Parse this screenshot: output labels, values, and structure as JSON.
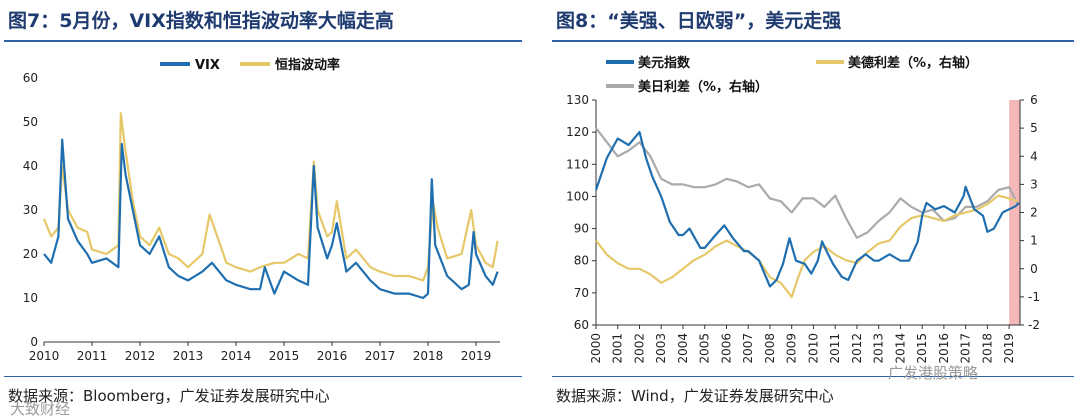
{
  "left": {
    "title": "图7：5月份，VIX指数和恒指波动率大幅走高",
    "source": "数据来源：Bloomberg，广发证券发展研究中心",
    "watermark": "大致财经"
  },
  "right": {
    "title": "图8：“美强、日欧弱”，美元走强",
    "source": "数据来源：Wind，广发证券发展研究中心",
    "watermark": "广发港股策略"
  },
  "colors": {
    "vix": "#1f6fb0",
    "hsi": "#e6c869",
    "dxy": "#1f6fb0",
    "us_de": "#e6c869",
    "us_jp": "#aaaaaa",
    "shade": "#f4b8b8"
  },
  "chart_data": [
    {
      "type": "line",
      "title": "5月份，VIX指数和恒指波动率大幅走高",
      "legend": [
        "VIX",
        "恒指波动率"
      ],
      "legend_position": "top-center",
      "x_ticks": [
        "2010",
        "2011",
        "2012",
        "2013",
        "2014",
        "2015",
        "2016",
        "2017",
        "2018",
        "2019"
      ],
      "xlim": [
        2010.0,
        2019.5
      ],
      "y_ticks": [
        "0",
        "10",
        "20",
        "30",
        "40",
        "50",
        "60"
      ],
      "ylim": [
        0,
        60
      ],
      "series": [
        {
          "name": "VIX",
          "color": "#1f6fb0",
          "x": [
            2010.0,
            2010.15,
            2010.3,
            2010.38,
            2010.5,
            2010.7,
            2010.9,
            2011.0,
            2011.3,
            2011.55,
            2011.62,
            2011.7,
            2011.85,
            2012.0,
            2012.2,
            2012.4,
            2012.6,
            2012.8,
            2013.0,
            2013.3,
            2013.5,
            2013.8,
            2014.0,
            2014.3,
            2014.5,
            2014.6,
            2014.8,
            2015.0,
            2015.3,
            2015.5,
            2015.62,
            2015.7,
            2015.9,
            2016.0,
            2016.1,
            2016.3,
            2016.5,
            2016.8,
            2017.0,
            2017.3,
            2017.6,
            2017.9,
            2018.0,
            2018.08,
            2018.15,
            2018.4,
            2018.7,
            2018.85,
            2018.95,
            2019.0,
            2019.2,
            2019.35,
            2019.45
          ],
          "y": [
            20,
            18,
            24,
            46,
            28,
            23,
            20,
            18,
            19,
            17,
            45,
            38,
            30,
            22,
            20,
            24,
            17,
            15,
            14,
            16,
            18,
            14,
            13,
            12,
            12,
            17,
            11,
            16,
            14,
            13,
            40,
            26,
            19,
            22,
            27,
            16,
            18,
            14,
            12,
            11,
            11,
            10,
            11,
            37,
            22,
            15,
            12,
            13,
            25,
            20,
            15,
            13,
            16
          ]
        },
        {
          "name": "恒指波动率",
          "color": "#e6c869",
          "x": [
            2010.0,
            2010.15,
            2010.3,
            2010.38,
            2010.5,
            2010.7,
            2010.9,
            2011.0,
            2011.3,
            2011.55,
            2011.6,
            2011.68,
            2011.85,
            2012.0,
            2012.2,
            2012.4,
            2012.6,
            2012.8,
            2013.0,
            2013.3,
            2013.45,
            2013.8,
            2014.0,
            2014.3,
            2014.5,
            2014.8,
            2015.0,
            2015.3,
            2015.5,
            2015.62,
            2015.7,
            2015.9,
            2016.0,
            2016.1,
            2016.3,
            2016.5,
            2016.8,
            2017.0,
            2017.3,
            2017.6,
            2017.9,
            2018.0,
            2018.1,
            2018.2,
            2018.4,
            2018.7,
            2018.9,
            2019.0,
            2019.2,
            2019.35,
            2019.45
          ],
          "y": [
            28,
            24,
            26,
            40,
            30,
            26,
            25,
            21,
            20,
            22,
            52,
            45,
            32,
            24,
            22,
            26,
            20,
            19,
            17,
            20,
            29,
            18,
            17,
            16,
            17,
            18,
            18,
            20,
            19,
            41,
            30,
            24,
            25,
            32,
            19,
            21,
            17,
            16,
            15,
            15,
            14,
            17,
            32,
            26,
            19,
            20,
            30,
            22,
            18,
            17,
            23
          ]
        }
      ]
    },
    {
      "type": "line",
      "title": "“美强、日欧弱”，美元走强",
      "legend": [
        "美元指数",
        "美德利差（%，右轴）",
        "美日利差（%，右轴）"
      ],
      "legend_position": "top",
      "x_ticks": [
        "2000",
        "2001",
        "2002",
        "2003",
        "2004",
        "2005",
        "2006",
        "2007",
        "2008",
        "2009",
        "2010",
        "2011",
        "2012",
        "2013",
        "2014",
        "2015",
        "2016",
        "2017",
        "2018",
        "2019"
      ],
      "xlim": [
        2000.0,
        2019.5
      ],
      "y_ticks": [
        "60",
        "70",
        "80",
        "90",
        "100",
        "110",
        "120",
        "130"
      ],
      "ylim": [
        60,
        130
      ],
      "y2_ticks": [
        "-2",
        "-1",
        "0",
        "1",
        "2",
        "3",
        "4",
        "5",
        "6"
      ],
      "y2lim": [
        -2,
        6
      ],
      "shaded_period": [
        2019.0,
        2019.5
      ],
      "series": [
        {
          "name": "美元指数",
          "axis": "left",
          "color": "#1f6fb0",
          "x": [
            2000.0,
            2000.5,
            2001.0,
            2001.5,
            2002.0,
            2002.3,
            2002.6,
            2003.0,
            2003.4,
            2003.8,
            2004.0,
            2004.3,
            2004.8,
            2005.0,
            2005.5,
            2005.9,
            2006.3,
            2006.8,
            2007.0,
            2007.5,
            2008.0,
            2008.3,
            2008.6,
            2008.9,
            2009.2,
            2009.6,
            2009.9,
            2010.2,
            2010.4,
            2010.6,
            2010.9,
            2011.3,
            2011.6,
            2012.0,
            2012.4,
            2012.8,
            2013.0,
            2013.5,
            2014.0,
            2014.4,
            2014.8,
            2015.0,
            2015.2,
            2015.6,
            2016.0,
            2016.5,
            2016.9,
            2017.0,
            2017.4,
            2017.8,
            2018.0,
            2018.3,
            2018.7,
            2019.0,
            2019.3,
            2019.45
          ],
          "y": [
            102,
            112,
            118,
            116,
            120,
            112,
            106,
            100,
            92,
            88,
            88,
            90,
            84,
            84,
            88,
            91,
            87,
            83,
            83,
            80,
            72,
            74,
            79,
            87,
            80,
            79,
            76,
            80,
            86,
            83,
            79,
            75,
            74,
            80,
            82,
            80,
            80,
            82,
            80,
            80,
            86,
            94,
            98,
            96,
            97,
            95,
            100,
            103,
            96,
            94,
            89,
            90,
            95,
            96,
            97,
            98
          ]
        },
        {
          "name": "美德利差（%，右轴）",
          "axis": "right",
          "color": "#e6c869",
          "x": [
            2000.0,
            2000.5,
            2001.0,
            2001.5,
            2002.0,
            2002.5,
            2003.0,
            2003.5,
            2004.0,
            2004.5,
            2005.0,
            2005.5,
            2006.0,
            2006.5,
            2007.0,
            2007.5,
            2008.0,
            2008.5,
            2009.0,
            2009.3,
            2009.6,
            2010.0,
            2010.5,
            2011.0,
            2011.5,
            2012.0,
            2012.5,
            2013.0,
            2013.5,
            2014.0,
            2014.5,
            2015.0,
            2015.5,
            2016.0,
            2016.5,
            2017.0,
            2017.5,
            2018.0,
            2018.5,
            2019.0,
            2019.4
          ],
          "y": [
            1.0,
            0.5,
            0.2,
            0.0,
            0.0,
            -0.2,
            -0.5,
            -0.3,
            0.0,
            0.3,
            0.5,
            0.8,
            1.0,
            0.8,
            0.6,
            0.3,
            -0.3,
            -0.5,
            -1.0,
            -0.3,
            0.3,
            0.6,
            0.8,
            0.5,
            0.3,
            0.2,
            0.6,
            0.9,
            1.0,
            1.5,
            1.8,
            1.9,
            1.8,
            1.7,
            1.9,
            2.0,
            2.1,
            2.3,
            2.6,
            2.5,
            2.4
          ]
        },
        {
          "name": "美日利差（%，右轴）",
          "axis": "right",
          "color": "#aaaaaa",
          "x": [
            2000.0,
            2000.5,
            2001.0,
            2001.5,
            2002.0,
            2002.5,
            2003.0,
            2003.5,
            2004.0,
            2004.5,
            2005.0,
            2005.5,
            2006.0,
            2006.5,
            2007.0,
            2007.5,
            2008.0,
            2008.5,
            2009.0,
            2009.5,
            2010.0,
            2010.5,
            2011.0,
            2011.5,
            2012.0,
            2012.5,
            2013.0,
            2013.5,
            2014.0,
            2014.5,
            2015.0,
            2015.5,
            2016.0,
            2016.5,
            2017.0,
            2017.5,
            2018.0,
            2018.5,
            2019.0,
            2019.4
          ],
          "y": [
            5.0,
            4.5,
            4.0,
            4.2,
            4.5,
            4.0,
            3.2,
            3.0,
            3.0,
            2.9,
            2.9,
            3.0,
            3.2,
            3.1,
            2.9,
            3.0,
            2.5,
            2.4,
            2.0,
            2.5,
            2.5,
            2.2,
            2.6,
            1.8,
            1.1,
            1.3,
            1.7,
            2.0,
            2.5,
            2.2,
            2.0,
            2.1,
            1.7,
            1.8,
            2.2,
            2.2,
            2.4,
            2.8,
            2.9,
            2.3
          ]
        }
      ]
    }
  ]
}
